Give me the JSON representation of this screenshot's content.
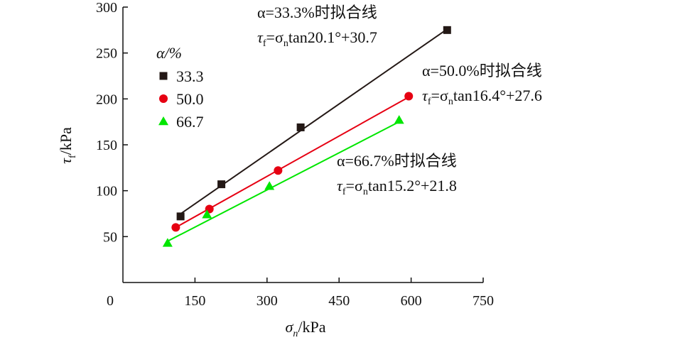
{
  "chart_data": {
    "type": "scatter",
    "xlabel": "σ/kPa",
    "xlabel_sub": "n",
    "ylabel": "τ/kPa",
    "ylabel_sub": "f",
    "xlim": [
      0,
      750
    ],
    "ylim": [
      0,
      300
    ],
    "x_ticks": [
      0,
      150,
      300,
      450,
      600,
      750
    ],
    "y_ticks": [
      50,
      100,
      150,
      200,
      250,
      300
    ],
    "grid": false,
    "legend": {
      "title": "α/%",
      "placement": "top-left"
    },
    "series": [
      {
        "name": "33.3",
        "marker": "square",
        "color": "#231815",
        "points": [
          [
            120,
            72
          ],
          [
            205,
            107
          ],
          [
            370,
            169
          ],
          [
            675,
            275
          ]
        ],
        "fit": {
          "x": [
            115,
            675
          ],
          "y": [
            73,
            276
          ]
        },
        "annotation": {
          "line1": "α=33.3%时拟合线",
          "line2_pre": "τ",
          "line2_sub": "f",
          "line2_mid": "=σ",
          "line2_sub2": "n",
          "line2_post": "tan20.1°+30.7"
        }
      },
      {
        "name": "50.0",
        "marker": "circle",
        "color": "#e60012",
        "points": [
          [
            110,
            60
          ],
          [
            180,
            80
          ],
          [
            323,
            122
          ],
          [
            595,
            203
          ]
        ],
        "fit": {
          "x": [
            110,
            595
          ],
          "y": [
            60,
            202
          ]
        },
        "annotation": {
          "line1": "α=50.0%时拟合线",
          "line2_pre": "τ",
          "line2_sub": "f",
          "line2_mid": "=σ",
          "line2_sub2": "n",
          "line2_post": "tan16.4°+27.6"
        }
      },
      {
        "name": "66.7",
        "marker": "triangle",
        "color": "#00e600",
        "points": [
          [
            93,
            43
          ],
          [
            175,
            74
          ],
          [
            305,
            105
          ],
          [
            575,
            177
          ]
        ],
        "fit": {
          "x": [
            93,
            575
          ],
          "y": [
            45,
            175
          ]
        },
        "annotation": {
          "line1": "α=66.7%时拟合线",
          "line2_pre": "τ",
          "line2_sub": "f",
          "line2_mid": "=σ",
          "line2_sub2": "n",
          "line2_post": "tan15.2°+21.8"
        }
      }
    ]
  }
}
